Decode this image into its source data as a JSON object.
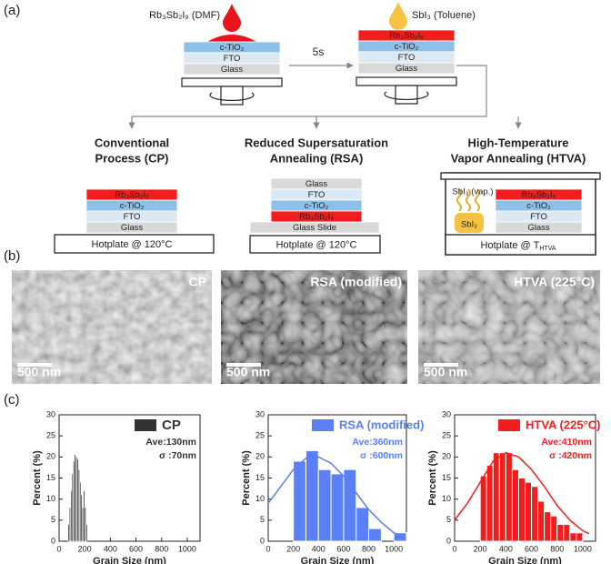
{
  "panel_labels": [
    "(a)",
    "(b)",
    "(c)"
  ],
  "deposition": {
    "step1": {
      "solution": "Rb₃Sb₂I₉ (DMF)",
      "drop_color": "#e8141b",
      "layers": [
        {
          "text": "c-TiO₂",
          "color": "#8cc0e8"
        },
        {
          "text": "FTO",
          "color": "#dce9f5"
        },
        {
          "text": "Glass",
          "color": "#d9d9d9"
        }
      ]
    },
    "delay": "5s",
    "step2": {
      "solution": "SbI₃ (Toluene)",
      "drop_color": "#f5c242",
      "layers": [
        {
          "text": "Rb₃Sb₂I₉",
          "color": "#f21d1d"
        },
        {
          "text": "c-TiO₂",
          "color": "#8cc0e8"
        },
        {
          "text": "FTO",
          "color": "#dce9f5"
        },
        {
          "text": "Glass",
          "color": "#d9d9d9"
        }
      ]
    }
  },
  "processes": [
    {
      "title": [
        "Conventional",
        "Process (CP)"
      ],
      "layers": [
        {
          "text": "Rb₃Sb₂I₉",
          "color": "#f21d1d"
        },
        {
          "text": "c-TiO₂",
          "color": "#8cc0e8"
        },
        {
          "text": "FTO",
          "color": "#dce9f5"
        },
        {
          "text": "Glass",
          "color": "#d9d9d9"
        }
      ],
      "hotplate": "Hotplate @ 120°C"
    },
    {
      "title": [
        "Reduced Supersaturation",
        "Annealing (RSA)"
      ],
      "layers": [
        {
          "text": "Glass",
          "color": "#d9d9d9"
        },
        {
          "text": "FTO",
          "color": "#dce9f5"
        },
        {
          "text": "c-TiO₂",
          "color": "#8cc0e8"
        },
        {
          "text": "Rb₃Sb₂I₉",
          "color": "#f21d1d"
        },
        {
          "text": "Glass Slide",
          "color": "#d9d9d9"
        }
      ],
      "hotplate": "Hotplate @ 120°C"
    },
    {
      "title": [
        "High-Temperature",
        "Vapor Annealing (HTVA)"
      ],
      "vapor": "SbI₃ (vap.)",
      "source": "SbI₃",
      "layers": [
        {
          "text": "Rb₃Sb₂I₉",
          "color": "#f21d1d"
        },
        {
          "text": "c-TiO₂",
          "color": "#8cc0e8"
        },
        {
          "text": "FTO",
          "color": "#dce9f5"
        },
        {
          "text": "Glass",
          "color": "#d9d9d9"
        }
      ],
      "hotplate": "Hotplate @ T",
      "hotplate_sub": "HTVA"
    }
  ],
  "sem": [
    {
      "label": "CP",
      "scale": "500 nm"
    },
    {
      "label": "RSA (modified)",
      "scale": "500 nm"
    },
    {
      "label": "HTVA (225°C)",
      "scale": "500 nm"
    }
  ],
  "chart_data": [
    {
      "type": "histogram",
      "xlabel": "Grain Size (nm)",
      "ylabel": "Percent (%)",
      "xlim": [
        0,
        1100
      ],
      "xticks": [
        0,
        200,
        400,
        600,
        800,
        1000
      ],
      "ylim": [
        0,
        30
      ],
      "yticks": [
        0,
        5,
        10,
        15,
        20,
        25,
        30
      ],
      "series": [
        {
          "name": "CP",
          "color": "#333333",
          "bins": [
            70,
            80,
            90,
            100,
            110,
            120,
            130,
            140,
            150,
            160,
            170,
            180,
            190,
            200,
            210,
            220
          ],
          "values": [
            4,
            8,
            12,
            16,
            19,
            20.5,
            20,
            19.5,
            17,
            14,
            11,
            8,
            12,
            8,
            4
          ]
        }
      ],
      "annotations": [
        "Ave:130nm",
        "σ :70nm"
      ]
    },
    {
      "type": "histogram",
      "xlabel": "Grain Size (nm)",
      "ylabel": "Percent (%)",
      "xlim": [
        0,
        1100
      ],
      "xticks": [
        0,
        200,
        400,
        600,
        800,
        1000
      ],
      "ylim": [
        0,
        30
      ],
      "yticks": [
        0,
        5,
        10,
        15,
        20,
        25,
        30
      ],
      "series": [
        {
          "name": "RSA (modified)",
          "color": "#5b7ff7",
          "bins": [
            200,
            300,
            400,
            500,
            600,
            700,
            800,
            900,
            1000,
            1100
          ],
          "values": [
            19,
            21.5,
            17,
            16,
            17,
            8,
            3,
            0,
            2
          ],
          "fit": {
            "x": [
              0,
              100,
              200,
              300,
              400,
              500,
              600,
              700,
              800,
              900,
              1000,
              1050
            ],
            "y": [
              9,
              13,
              17,
              19.7,
              20,
              18.5,
              15.5,
              11.5,
              7.5,
              4.5,
              2,
              1.3
            ]
          }
        }
      ],
      "annotations": [
        "Ave:360nm",
        "σ :600nm"
      ]
    },
    {
      "type": "histogram",
      "xlabel": "Grain Size (nm)",
      "ylabel": "Percent (%)",
      "xlim": [
        0,
        1100
      ],
      "xticks": [
        0,
        200,
        400,
        600,
        800,
        1000
      ],
      "ylim": [
        0,
        30
      ],
      "yticks": [
        0,
        5,
        10,
        15,
        20,
        25,
        30
      ],
      "series": [
        {
          "name": "HTVA (225°C)",
          "color": "#f21d1d",
          "bins": [
            200,
            250,
            300,
            350,
            400,
            450,
            500,
            550,
            600,
            650,
            700,
            750,
            800,
            850,
            900,
            950,
            1000
          ],
          "values": [
            15.5,
            18,
            21,
            21,
            21,
            17,
            15,
            14,
            13,
            9.5,
            7,
            6,
            4,
            4,
            2,
            2
          ],
          "fit": {
            "x": [
              0,
              100,
              200,
              300,
              400,
              500,
              600,
              700,
              800,
              900,
              1000,
              1050
            ],
            "y": [
              5,
              9,
              14,
              19,
              21,
              20,
              17,
              13,
              8.5,
              5,
              2.5,
              1.8
            ]
          }
        }
      ],
      "annotations": [
        "Ave:410nm",
        "σ :420nm"
      ]
    }
  ]
}
